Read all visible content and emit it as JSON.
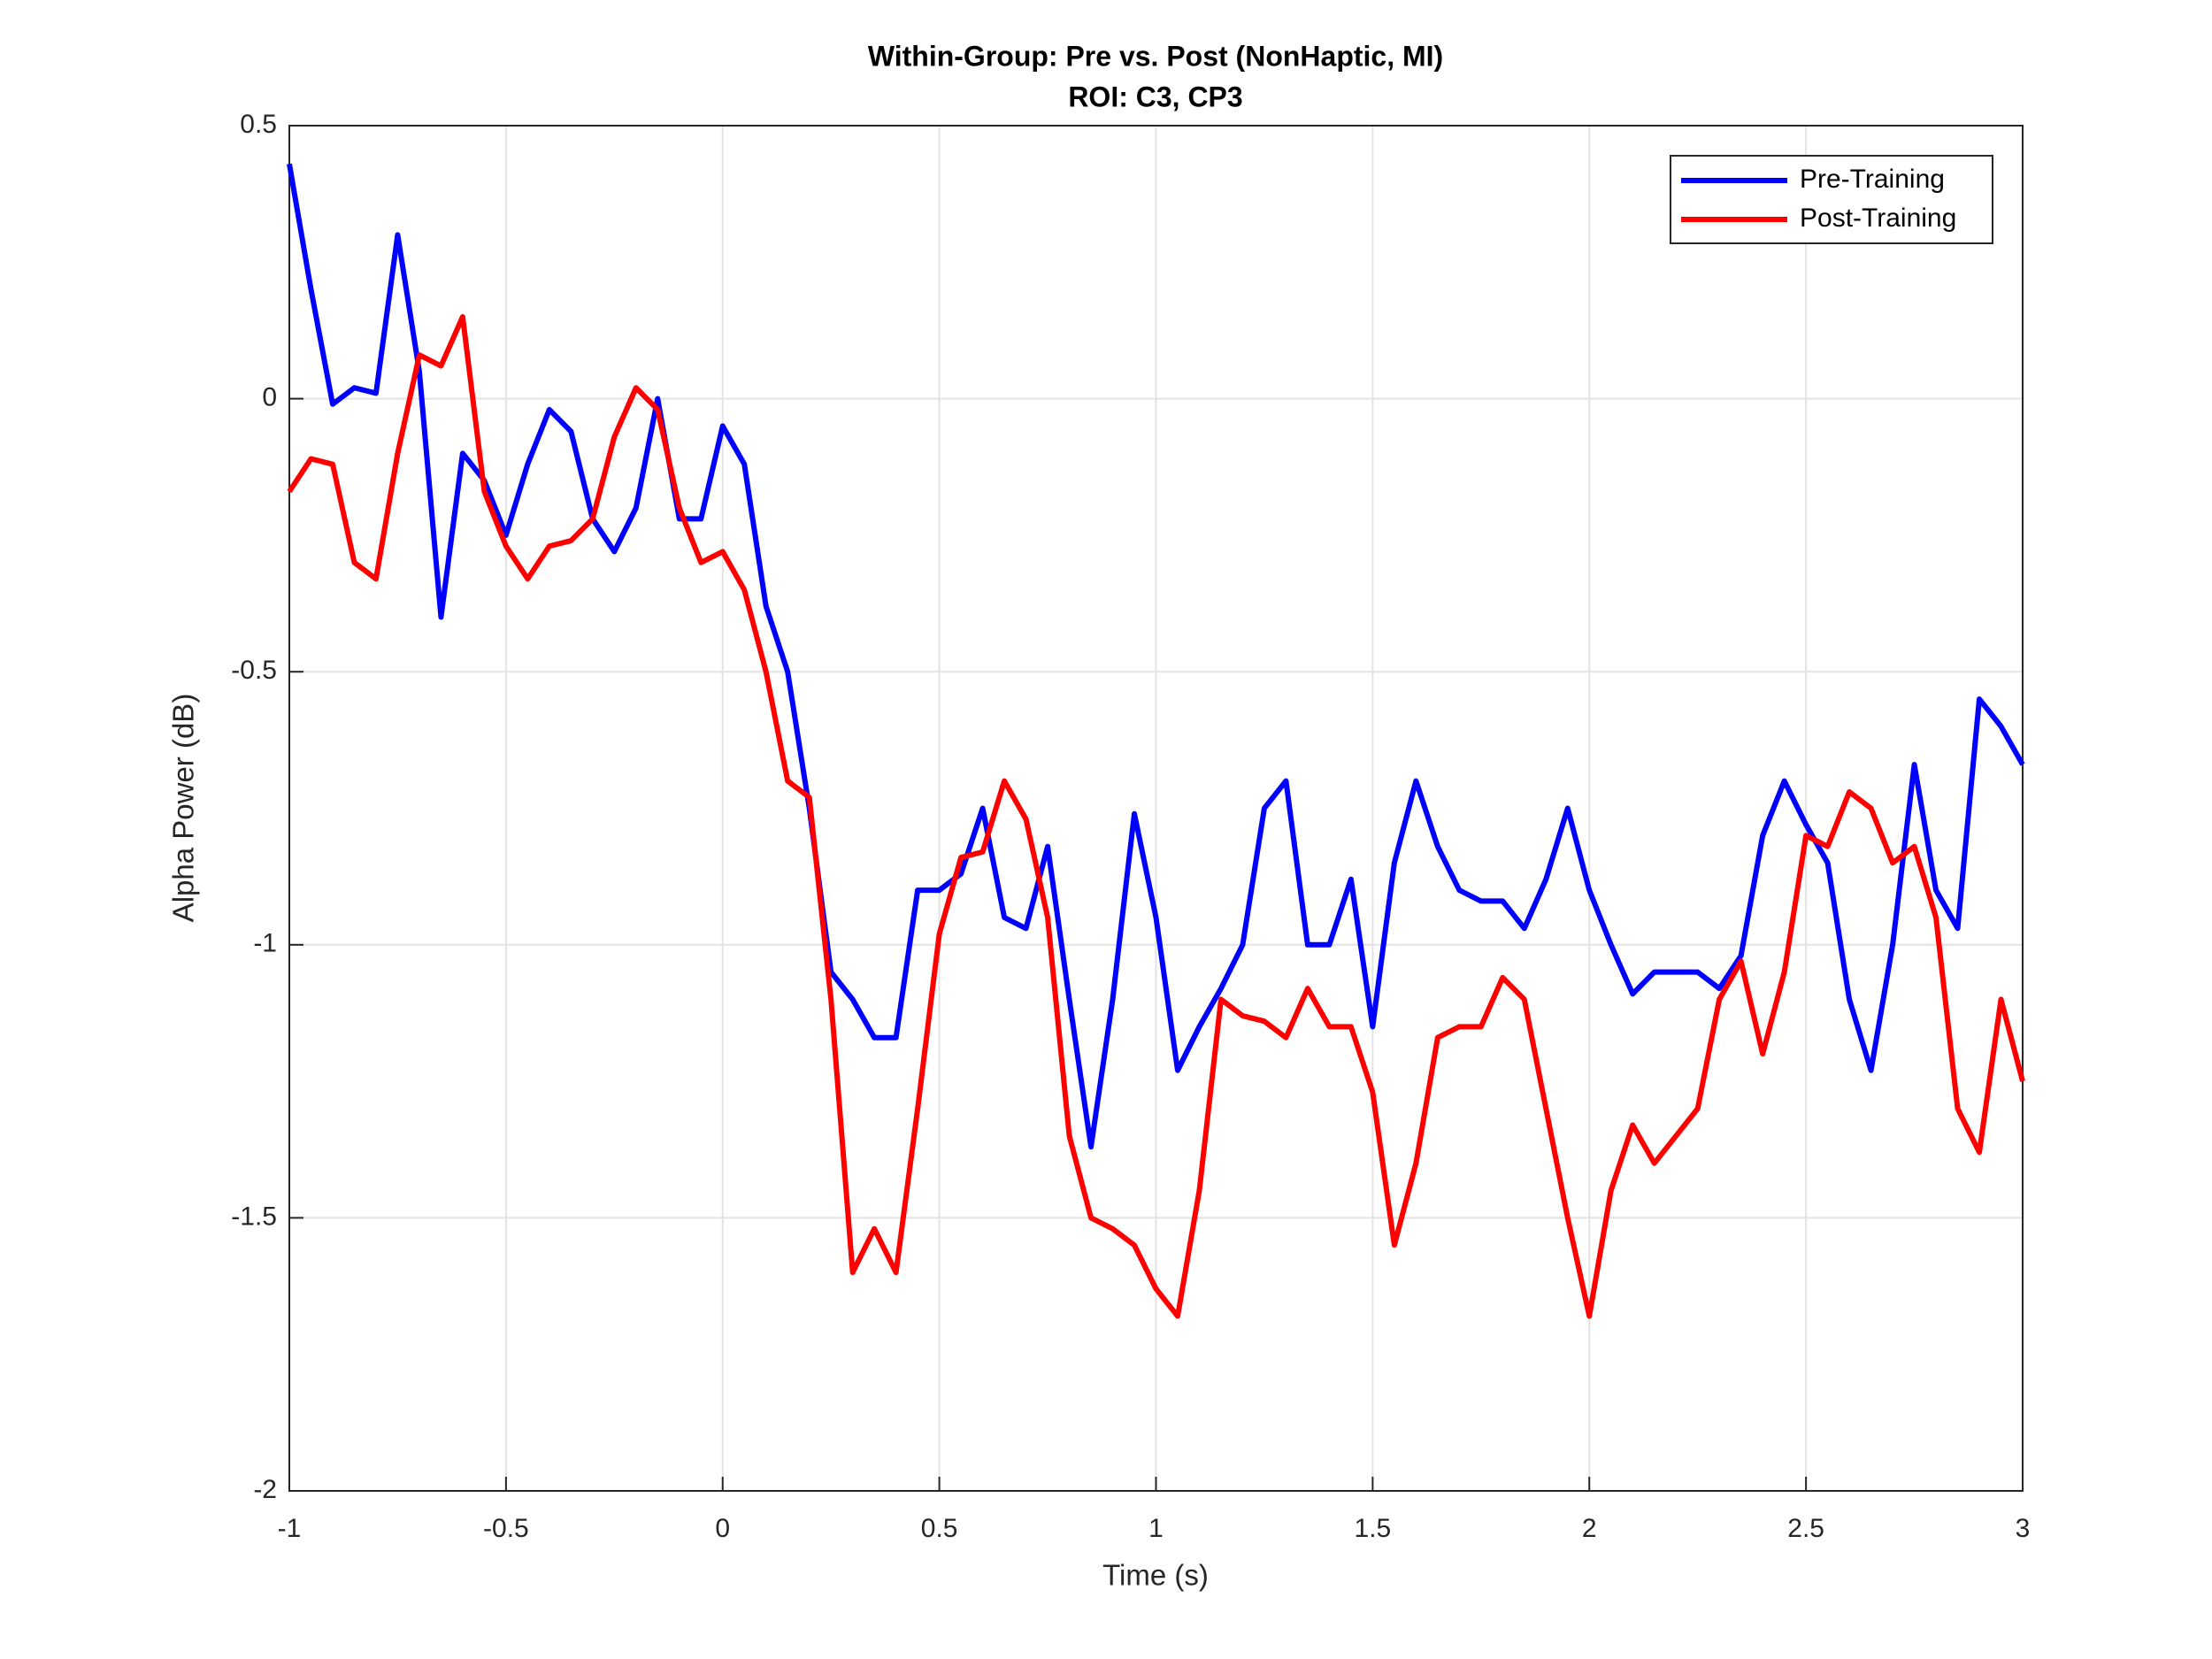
{
  "chart_data": {
    "type": "line",
    "title": "Within-Group: Pre vs. Post (NonHaptic, MI)",
    "subtitle": "ROI: C3, CP3",
    "x_label": "Time (s)",
    "y_label": "Alpha Power (dB)",
    "x": [
      -1,
      -0.95,
      -0.9,
      -0.85,
      -0.8,
      -0.75,
      -0.7,
      -0.65,
      -0.6,
      -0.55,
      -0.5,
      -0.45,
      -0.4,
      -0.35,
      -0.3,
      -0.25,
      -0.2,
      -0.15,
      -0.1,
      -0.05,
      0,
      0.05,
      0.1,
      0.15,
      0.2,
      0.25,
      0.3,
      0.35,
      0.4,
      0.45,
      0.5,
      0.55,
      0.6,
      0.65,
      0.7,
      0.75,
      0.8,
      0.85,
      0.9,
      0.95,
      1,
      1.05,
      1.1,
      1.15,
      1.2,
      1.25,
      1.3,
      1.35,
      1.4,
      1.45,
      1.5,
      1.55,
      1.6,
      1.65,
      1.7,
      1.75,
      1.8,
      1.85,
      1.9,
      1.95,
      2,
      2.05,
      2.1,
      2.15,
      2.2,
      2.25,
      2.3,
      2.35,
      2.4,
      2.45,
      2.5,
      2.55,
      2.6,
      2.65,
      2.7,
      2.75,
      2.8,
      2.85,
      2.9,
      2.95,
      3
    ],
    "series": [
      {
        "name": "Pre-Training",
        "color": "#0000ff",
        "values": [
          0.43,
          0.2,
          -0.01,
          0.02,
          0.01,
          0.3,
          0.05,
          -0.4,
          -0.1,
          -0.15,
          -0.25,
          -0.12,
          -0.02,
          -0.06,
          -0.22,
          -0.28,
          -0.2,
          0.0,
          -0.22,
          -0.22,
          -0.05,
          -0.12,
          -0.38,
          -0.5,
          -0.75,
          -1.05,
          -1.1,
          -1.17,
          -1.17,
          -0.9,
          -0.9,
          -0.87,
          -0.75,
          -0.95,
          -0.97,
          -0.82,
          -1.1,
          -1.37,
          -1.1,
          -0.76,
          -0.95,
          -1.23,
          -1.15,
          -1.08,
          -1.0,
          -0.75,
          -0.7,
          -1.0,
          -1.0,
          -0.88,
          -1.15,
          -0.85,
          -0.7,
          -0.82,
          -0.9,
          -0.92,
          -0.92,
          -0.97,
          -0.88,
          -0.75,
          -0.9,
          -1.0,
          -1.09,
          -1.05,
          -1.05,
          -1.05,
          -1.08,
          -1.02,
          -0.8,
          -0.7,
          -0.78,
          -0.85,
          -1.1,
          -1.23,
          -1.0,
          -0.67,
          -0.9,
          -0.97,
          -0.55,
          -0.6,
          -0.67
        ]
      },
      {
        "name": "Post-Training",
        "color": "#ff0000",
        "values": [
          -0.17,
          -0.11,
          -0.12,
          -0.3,
          -0.33,
          -0.1,
          0.08,
          0.06,
          0.15,
          -0.17,
          -0.27,
          -0.33,
          -0.27,
          -0.26,
          -0.22,
          -0.07,
          0.02,
          -0.02,
          -0.2,
          -0.3,
          -0.28,
          -0.35,
          -0.5,
          -0.7,
          -0.73,
          -1.1,
          -1.6,
          -1.52,
          -1.6,
          -1.3,
          -0.98,
          -0.84,
          -0.83,
          -0.7,
          -0.77,
          -0.95,
          -1.35,
          -1.5,
          -1.52,
          -1.55,
          -1.63,
          -1.68,
          -1.45,
          -1.1,
          -1.13,
          -1.14,
          -1.17,
          -1.08,
          -1.15,
          -1.15,
          -1.27,
          -1.55,
          -1.4,
          -1.17,
          -1.15,
          -1.15,
          -1.06,
          -1.1,
          -1.3,
          -1.5,
          -1.68,
          -1.45,
          -1.33,
          -1.4,
          -1.35,
          -1.3,
          -1.1,
          -1.03,
          -1.2,
          -1.05,
          -0.8,
          -0.82,
          -0.72,
          -0.75,
          -0.85,
          -0.82,
          -0.95,
          -1.3,
          -1.38,
          -1.1,
          -1.25
        ]
      }
    ],
    "xlim": [
      -1,
      3
    ],
    "xticks": [
      -1,
      -0.5,
      0,
      0.5,
      1,
      1.5,
      2,
      2.5,
      3
    ],
    "ylim": [
      -2,
      0.5
    ],
    "yticks": [
      -2,
      -1.5,
      -1,
      -0.5,
      0,
      0.5
    ],
    "grid": true,
    "legend": "northeast"
  }
}
